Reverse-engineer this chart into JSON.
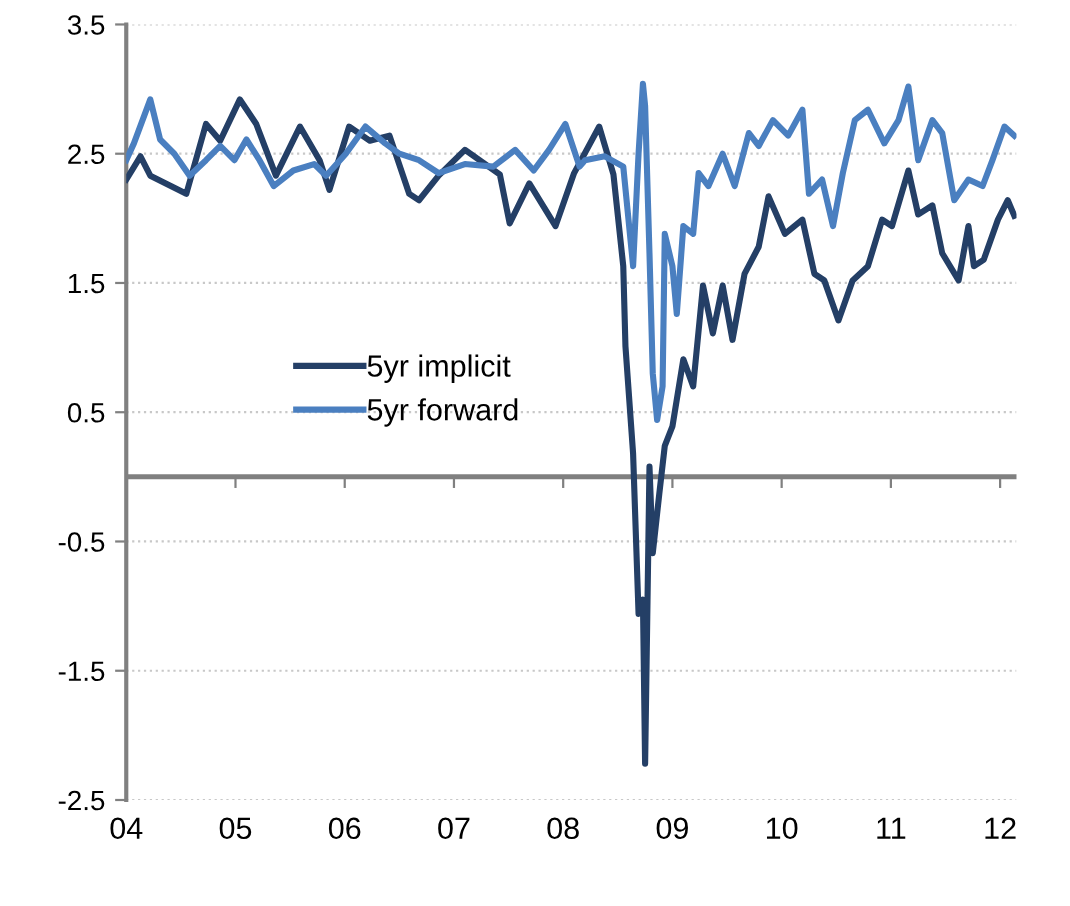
{
  "chart_data": {
    "type": "line",
    "xlim": [
      2004,
      2012.15
    ],
    "ylim": [
      -2.5,
      3.5
    ],
    "xticks": [
      {
        "value": 2004,
        "label": "04"
      },
      {
        "value": 2005,
        "label": "05"
      },
      {
        "value": 2006,
        "label": "06"
      },
      {
        "value": 2007,
        "label": "07"
      },
      {
        "value": 2008,
        "label": "08"
      },
      {
        "value": 2009,
        "label": "09"
      },
      {
        "value": 2010,
        "label": "10"
      },
      {
        "value": 2011,
        "label": "11"
      },
      {
        "value": 2012,
        "label": "12"
      }
    ],
    "yticks": [
      3.5,
      2.5,
      1.5,
      0.5,
      -0.5,
      -1.5,
      -2.5
    ],
    "grid": "y",
    "legend": "center left",
    "line_style": "solid",
    "ref_lines": [
      {
        "axis": "y",
        "value": 0,
        "label": null,
        "color": "#808080"
      }
    ],
    "series": [
      {
        "name": "5yr implicit",
        "color": "#243f66",
        "x": [
          2004.0,
          2004.13,
          2004.22,
          2004.55,
          2004.73,
          2004.86,
          2005.04,
          2005.19,
          2005.37,
          2005.59,
          2005.77,
          2005.86,
          2006.04,
          2006.23,
          2006.41,
          2006.59,
          2006.68,
          2006.86,
          2007.1,
          2007.42,
          2007.51,
          2007.69,
          2007.93,
          2008.1,
          2008.33,
          2008.46,
          2008.55,
          2008.57,
          2008.64,
          2008.69,
          2008.73,
          2008.75,
          2008.79,
          2008.82,
          2008.88,
          2008.93,
          2009.0,
          2009.1,
          2009.19,
          2009.28,
          2009.37,
          2009.46,
          2009.55,
          2009.66,
          2009.79,
          2009.88,
          2010.03,
          2010.19,
          2010.3,
          2010.39,
          2010.52,
          2010.65,
          2010.79,
          2010.92,
          2011.01,
          2011.16,
          2011.25,
          2011.38,
          2011.47,
          2011.62,
          2011.71,
          2011.76,
          2011.85,
          2011.98,
          2012.07,
          2012.13
        ],
        "values": [
          2.3,
          2.48,
          2.33,
          2.19,
          2.73,
          2.6,
          2.92,
          2.73,
          2.33,
          2.71,
          2.45,
          2.22,
          2.71,
          2.6,
          2.64,
          2.19,
          2.14,
          2.33,
          2.53,
          2.34,
          1.96,
          2.27,
          1.94,
          2.35,
          2.71,
          2.34,
          1.63,
          1.01,
          0.18,
          -1.06,
          -0.95,
          -2.22,
          0.08,
          -0.59,
          -0.13,
          0.24,
          0.39,
          0.91,
          0.7,
          1.48,
          1.11,
          1.48,
          1.06,
          1.57,
          1.78,
          2.17,
          1.88,
          1.99,
          1.57,
          1.52,
          1.21,
          1.52,
          1.63,
          1.99,
          1.94,
          2.37,
          2.03,
          2.1,
          1.73,
          1.52,
          1.94,
          1.63,
          1.68,
          1.99,
          2.14,
          2.02
        ]
      },
      {
        "name": "5yr forward",
        "color": "#4a7fc0",
        "x": [
          2004.0,
          2004.07,
          2004.22,
          2004.31,
          2004.44,
          2004.58,
          2004.73,
          2004.86,
          2004.99,
          2005.1,
          2005.22,
          2005.35,
          2005.53,
          2005.72,
          2005.83,
          2006.01,
          2006.19,
          2006.37,
          2006.5,
          2006.68,
          2006.86,
          2007.1,
          2007.36,
          2007.56,
          2007.73,
          2007.87,
          2008.02,
          2008.15,
          2008.2,
          2008.38,
          2008.55,
          2008.64,
          2008.69,
          2008.73,
          2008.75,
          2008.79,
          2008.82,
          2008.86,
          2008.91,
          2008.93,
          2009.0,
          2009.04,
          2009.1,
          2009.19,
          2009.24,
          2009.33,
          2009.46,
          2009.57,
          2009.7,
          2009.79,
          2009.92,
          2010.06,
          2010.19,
          2010.25,
          2010.37,
          2010.47,
          2010.56,
          2010.67,
          2010.79,
          2010.94,
          2011.07,
          2011.16,
          2011.25,
          2011.38,
          2011.47,
          2011.58,
          2011.71,
          2011.84,
          2011.93,
          2012.04,
          2012.13
        ],
        "values": [
          2.45,
          2.58,
          2.92,
          2.61,
          2.5,
          2.33,
          2.45,
          2.56,
          2.45,
          2.61,
          2.45,
          2.25,
          2.37,
          2.42,
          2.33,
          2.5,
          2.71,
          2.58,
          2.5,
          2.45,
          2.35,
          2.42,
          2.4,
          2.53,
          2.37,
          2.53,
          2.73,
          2.4,
          2.45,
          2.48,
          2.4,
          1.63,
          2.5,
          3.04,
          2.87,
          1.73,
          0.8,
          0.44,
          0.7,
          1.88,
          1.63,
          1.26,
          1.94,
          1.88,
          2.35,
          2.25,
          2.5,
          2.25,
          2.66,
          2.56,
          2.76,
          2.64,
          2.84,
          2.19,
          2.3,
          1.94,
          2.35,
          2.76,
          2.84,
          2.58,
          2.76,
          3.02,
          2.45,
          2.76,
          2.66,
          2.14,
          2.3,
          2.25,
          2.45,
          2.71,
          2.64
        ]
      }
    ]
  }
}
